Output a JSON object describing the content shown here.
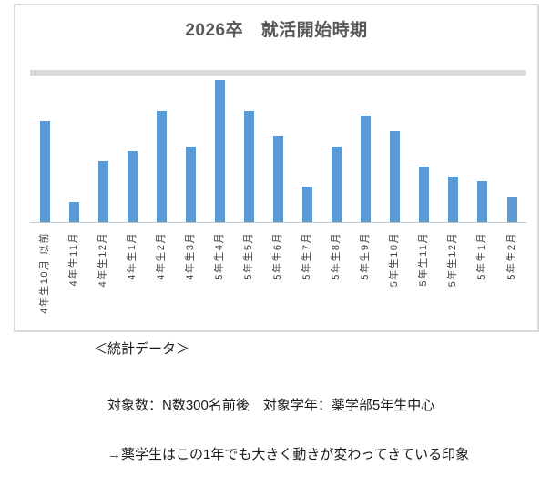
{
  "chart": {
    "title": "2026卒　就活開始時期",
    "colors": {
      "bar": "#5B9BD5",
      "gridline": "#D9D9D9",
      "axis_line": "#C6C6C6",
      "frame_border": "#D9D9D9",
      "title_text": "#595959",
      "axis_label_text": "#404040",
      "background": "#FFFFFF"
    }
  },
  "chart_data": {
    "type": "bar",
    "title": "2026卒　就活開始時期",
    "categories": [
      "4年生10月 以前",
      "4年生11月",
      "4年生12月",
      "4年生1月",
      "4年生2月",
      "4年生3月",
      "5年生4月",
      "5年生5月",
      "5年生6月",
      "5年生7月",
      "5年生8月",
      "5年生9月",
      "5年生10月",
      "5年生11月",
      "5年生12月",
      "5年生1月",
      "5年生2月"
    ],
    "values": [
      20,
      4,
      12,
      14,
      22,
      15,
      28,
      22,
      17,
      7,
      15,
      21,
      18,
      11,
      9,
      8,
      5
    ],
    "xlabel": "",
    "ylabel": "",
    "ylim": [
      0,
      30
    ],
    "gridline_step": 5,
    "gridline_count": 6,
    "grid": true,
    "legend": false,
    "y_axis_labels_visible": false,
    "values_note": "y-axis tick labels are not displayed in the chart; values estimated from gridlines (5 units per gridline interval)",
    "bar_color": "#5B9BD5",
    "x_label_rotation_deg": 90
  },
  "notes": {
    "heading": "＜統計データ＞",
    "line1": "対象数：N数300名前後　対象学年：薬学部5年生中心",
    "line2": "→薬学生はこの1年でも大きく動きが変わってきている印象"
  }
}
